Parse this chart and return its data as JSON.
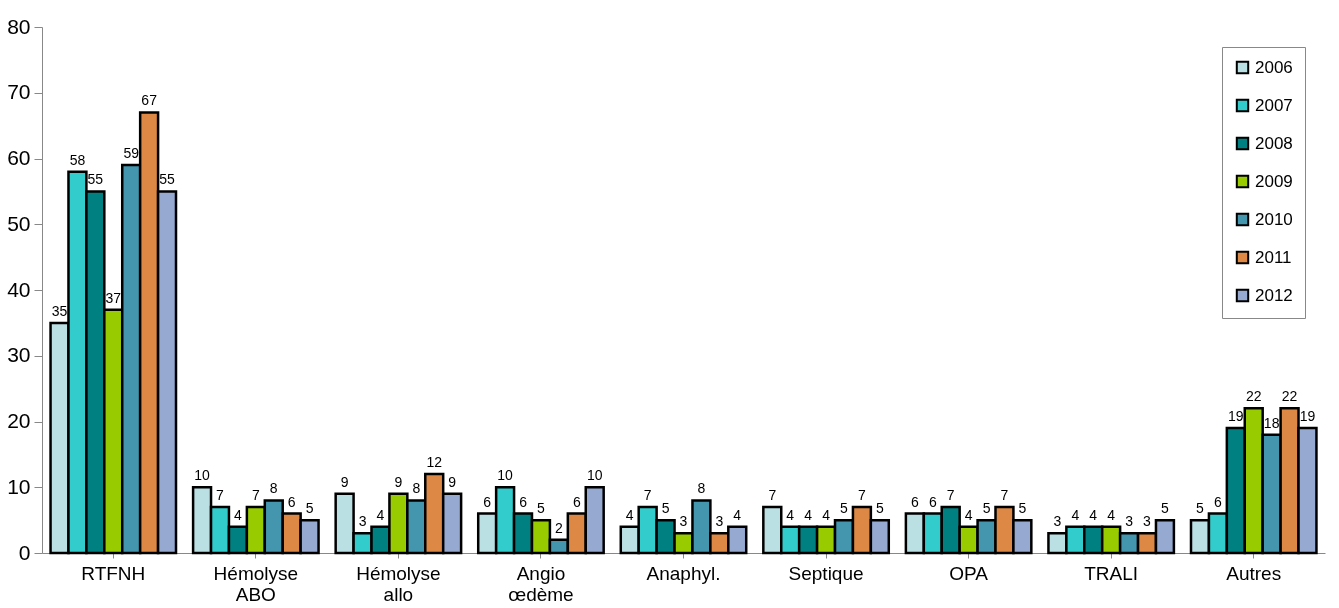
{
  "chart_data": {
    "type": "bar",
    "categories": [
      "RTFNH",
      "Hémolyse ABO",
      "Hémolyse allo",
      "Angio œdème",
      "Anaphyl.",
      "Septique",
      "OPA",
      "TRALI",
      "Autres"
    ],
    "series": [
      {
        "name": "2006",
        "color": "#bbe0e3",
        "values": [
          35,
          10,
          9,
          6,
          4,
          7,
          6,
          3,
          5
        ]
      },
      {
        "name": "2007",
        "color": "#33cccc",
        "values": [
          58,
          7,
          3,
          10,
          7,
          4,
          6,
          4,
          6
        ]
      },
      {
        "name": "2008",
        "color": "#008080",
        "values": [
          55,
          4,
          4,
          6,
          5,
          4,
          7,
          4,
          19
        ]
      },
      {
        "name": "2009",
        "color": "#99cc00",
        "values": [
          37,
          7,
          9,
          5,
          3,
          4,
          4,
          4,
          22
        ]
      },
      {
        "name": "2010",
        "color": "#4396ad",
        "values": [
          59,
          8,
          8,
          2,
          8,
          5,
          5,
          3,
          18
        ]
      },
      {
        "name": "2011",
        "color": "#dd8844",
        "values": [
          67,
          6,
          12,
          6,
          3,
          7,
          7,
          3,
          22
        ]
      },
      {
        "name": "2012",
        "color": "#95a9d1",
        "values": [
          55,
          5,
          9,
          10,
          4,
          5,
          5,
          5,
          19
        ]
      }
    ],
    "ylim": [
      0,
      80
    ],
    "yticks": [
      0,
      10,
      20,
      30,
      40,
      50,
      60,
      70,
      80
    ],
    "data_labels": true,
    "legend": "top right",
    "grid": false
  }
}
